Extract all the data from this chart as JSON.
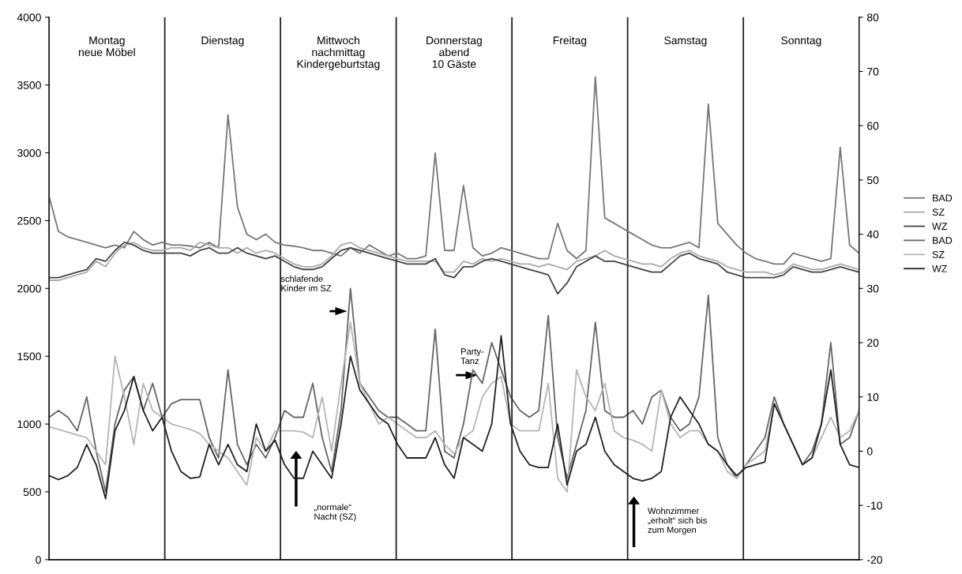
{
  "chart_data": {
    "type": "line",
    "categories": [
      null,
      null,
      null,
      null,
      null,
      null,
      null,
      null,
      null,
      null,
      null,
      null,
      null,
      null,
      null,
      null,
      null,
      null,
      null,
      null,
      null,
      null,
      null,
      null,
      null,
      null,
      null,
      null,
      null,
      null,
      null,
      null,
      null,
      null,
      null,
      null,
      null,
      null,
      null,
      null,
      null,
      null,
      null,
      null,
      null,
      null,
      null,
      null,
      null,
      null,
      null,
      null,
      null,
      null,
      null,
      null,
      null,
      null,
      null,
      null,
      null,
      null,
      null,
      null,
      null,
      null,
      null,
      null,
      null,
      null,
      null,
      null,
      null,
      null,
      null,
      null,
      null,
      null,
      null,
      null,
      null,
      null,
      null,
      null,
      null,
      null,
      null
    ],
    "series": [
      {
        "name": "BAD",
        "axis": "y2",
        "color": "#777777",
        "values": [
          47,
          40.5,
          39.5,
          39,
          38.5,
          38,
          37.5,
          38,
          37.5,
          40.5,
          39,
          38,
          38.5,
          38,
          38,
          37.8,
          37.5,
          38.5,
          37.5,
          62,
          45,
          40,
          39,
          40,
          38.5,
          38,
          37.8,
          37.5,
          37,
          37,
          36.5,
          36,
          37.5,
          36.5,
          38,
          37,
          36,
          36.5,
          35.5,
          35.5,
          36,
          55,
          37,
          37,
          49,
          37.5,
          36,
          36.5,
          37.5,
          37,
          36.5,
          36,
          35.5,
          35.5,
          42,
          37,
          35.5,
          37,
          69,
          43,
          42,
          41,
          40,
          39,
          38,
          37.5,
          37.5,
          38,
          38.5,
          37.5,
          64,
          42,
          40,
          38,
          36.5,
          35.5,
          35,
          34.5,
          34.5,
          36.5,
          36,
          35.5,
          35,
          35.5,
          56,
          38,
          36.5
        ]
      },
      {
        "name": "SZ",
        "axis": "y2",
        "color": "#aaaaaa",
        "values": [
          31.5,
          31.5,
          32,
          32.5,
          33,
          35,
          34,
          36.5,
          38,
          38.5,
          37.5,
          37,
          37,
          37.5,
          37.5,
          37,
          38.5,
          38,
          37.5,
          37.5,
          36.5,
          37.5,
          36.5,
          37,
          36.5,
          35.5,
          34.5,
          34,
          34,
          34.5,
          36,
          38,
          38.5,
          37.5,
          37,
          36.5,
          36,
          35.5,
          35,
          35,
          35,
          35,
          33,
          33,
          35,
          34.5,
          35.5,
          35,
          35.5,
          35,
          34.5,
          34.5,
          34,
          34.5,
          34,
          33.5,
          35,
          35.5,
          36,
          37,
          36,
          35.5,
          35,
          34.5,
          34.5,
          34,
          35.5,
          36.5,
          37,
          36,
          35.5,
          35,
          34,
          33.5,
          33,
          33,
          33,
          32.5,
          33,
          34.5,
          34,
          33.5,
          33.5,
          34,
          34.5,
          34,
          33.5
        ]
      },
      {
        "name": "WZ",
        "axis": "y2",
        "color": "#444444",
        "values": [
          32,
          32,
          32.5,
          33,
          33.5,
          35.5,
          35,
          37,
          38.5,
          38,
          37,
          36.5,
          36.5,
          36.5,
          36.5,
          36,
          37,
          37.5,
          36.5,
          36.5,
          37.5,
          36.5,
          36,
          35.5,
          36,
          35,
          34,
          33.5,
          33.5,
          34,
          35.5,
          37,
          37.5,
          37,
          36.5,
          36,
          35.5,
          35,
          34.5,
          34.5,
          34.5,
          35.5,
          32.5,
          32,
          34,
          34,
          35,
          35.5,
          35,
          34.5,
          34,
          33.5,
          33,
          32.5,
          29,
          31,
          34,
          35,
          36,
          35,
          35,
          34.5,
          34,
          33.5,
          33,
          33,
          34.5,
          36,
          36.5,
          35.5,
          35,
          34.5,
          33,
          32.5,
          32,
          32,
          32,
          32,
          32.5,
          34,
          33.5,
          33,
          33,
          33.5,
          34,
          33.5,
          33
        ]
      },
      {
        "name": "BAD",
        "color": "#666666",
        "values": [
          1050,
          1100,
          1050,
          950,
          1200,
          800,
          500,
          1000,
          1250,
          1350,
          1100,
          1300,
          1050,
          1150,
          1180,
          1180,
          1180,
          900,
          750,
          1400,
          850,
          700,
          850,
          750,
          900,
          1100,
          1050,
          1050,
          1300,
          900,
          650,
          1100,
          2000,
          1300,
          1200,
          1100,
          1050,
          1050,
          1000,
          950,
          950,
          1700,
          800,
          750,
          1000,
          1400,
          1300,
          1600,
          1400,
          1200,
          1100,
          1050,
          1100,
          1800,
          900,
          600,
          850,
          1100,
          1750,
          1100,
          1050,
          1050,
          1100,
          1000,
          1200,
          1250,
          1050,
          950,
          1000,
          1200,
          1950,
          900,
          700,
          600,
          700,
          800,
          900,
          1200,
          1000,
          850,
          700,
          800,
          1000,
          1600,
          850,
          900,
          1100
        ]
      },
      {
        "name": "SZ",
        "color": "#b5b5b5",
        "values": [
          980,
          960,
          940,
          920,
          900,
          800,
          700,
          1500,
          1200,
          850,
          1300,
          1100,
          1050,
          1000,
          980,
          960,
          930,
          850,
          800,
          750,
          650,
          550,
          900,
          800,
          950,
          950,
          950,
          940,
          900,
          1200,
          800,
          1300,
          1750,
          1300,
          1150,
          1000,
          1050,
          1000,
          950,
          900,
          900,
          950,
          850,
          780,
          900,
          950,
          1200,
          1300,
          1350,
          1000,
          950,
          950,
          950,
          1300,
          600,
          500,
          1400,
          1200,
          1100,
          1300,
          950,
          900,
          880,
          850,
          800,
          1250,
          1000,
          900,
          950,
          950,
          850,
          800,
          650,
          600,
          700,
          750,
          800,
          1150,
          1000,
          850,
          700,
          750,
          900,
          1050,
          900,
          950,
          1100
        ]
      },
      {
        "name": "WZ",
        "color": "#222222",
        "values": [
          620,
          590,
          620,
          680,
          850,
          700,
          450,
          950,
          1100,
          1350,
          1100,
          950,
          1050,
          800,
          650,
          600,
          610,
          850,
          700,
          850,
          700,
          650,
          1000,
          800,
          880,
          700,
          600,
          600,
          800,
          700,
          600,
          1000,
          1500,
          1250,
          1150,
          1050,
          1000,
          850,
          750,
          750,
          750,
          900,
          700,
          600,
          900,
          850,
          800,
          1000,
          1650,
          1000,
          800,
          700,
          680,
          680,
          1000,
          550,
          800,
          850,
          1050,
          800,
          700,
          650,
          600,
          580,
          600,
          650,
          1050,
          1200,
          1100,
          1000,
          850,
          800,
          700,
          620,
          680,
          700,
          720,
          1150,
          1000,
          850,
          700,
          750,
          1000,
          1400,
          850,
          700,
          680
        ]
      }
    ],
    "ylim": [
      0,
      4000
    ],
    "yticks": [
      0,
      500,
      1000,
      1500,
      2000,
      2500,
      3000,
      3500,
      4000
    ],
    "y2lim": [
      -20,
      80
    ],
    "y2ticks": [
      -20,
      -10,
      0,
      10,
      20,
      30,
      40,
      50,
      60,
      70,
      80
    ],
    "annotations": [
      "Montag\nneue Möbel",
      "Dienstag",
      "Mittwoch\nnachmittag\nKindergeburtstag",
      "Donnerstag\nabend\n10 Gäste",
      "Freitag",
      "Samstag",
      "Sonntag",
      "schlafende\nKinder im SZ",
      "„normale“\nNacht (SZ)",
      "Party-\nTanz",
      "Wohnzimmer\n„erholt“ sich bis\nzum Morgen"
    ],
    "grid": false,
    "legend": "right",
    "marker": "none",
    "line_style": "solid"
  }
}
